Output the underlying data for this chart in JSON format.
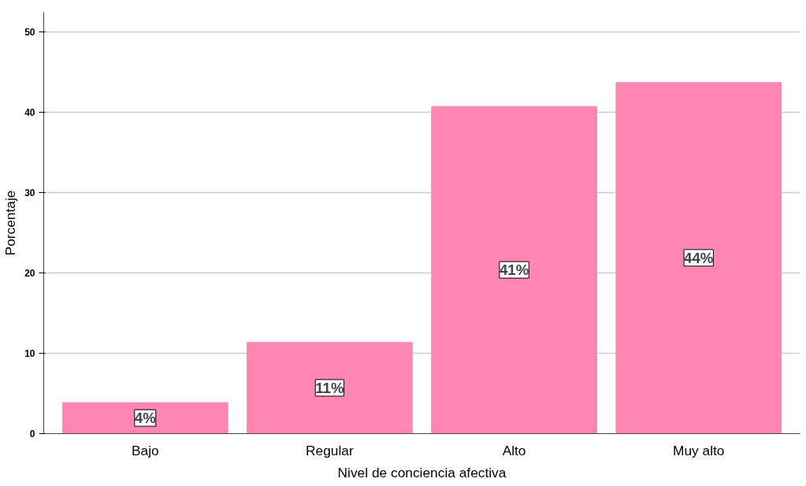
{
  "chart_data": {
    "type": "bar",
    "xlabel": "Nivel de conciencia afectiva",
    "ylabel": "Porcentaje",
    "categories": [
      "Bajo",
      "Regular",
      "Alto",
      "Muy alto"
    ],
    "values": [
      3.9,
      11.4,
      40.8,
      43.8
    ],
    "value_labels": [
      "4%",
      "11%",
      "41%",
      "44%"
    ],
    "color": "#ff85b3",
    "ylim": [
      0,
      52.5
    ],
    "yticks": [
      0,
      10,
      20,
      30,
      40,
      50
    ],
    "grid": "y"
  }
}
